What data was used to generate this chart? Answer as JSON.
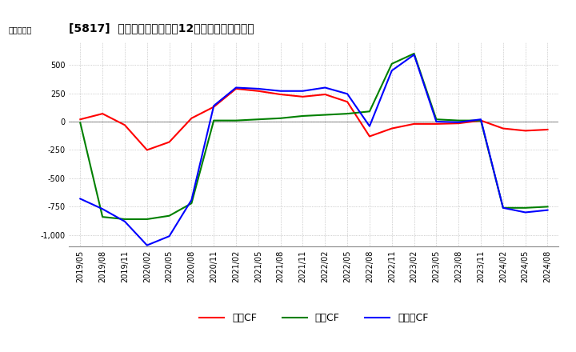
{
  "title": "[5817]  キャッシュフローの12か月移動合計の推移",
  "ylabel": "（百万円）",
  "dates": [
    "2019/05",
    "2019/08",
    "2019/11",
    "2020/02",
    "2020/05",
    "2020/08",
    "2020/11",
    "2021/02",
    "2021/05",
    "2021/08",
    "2021/11",
    "2022/02",
    "2022/05",
    "2022/08",
    "2022/11",
    "2023/02",
    "2023/05",
    "2023/08",
    "2023/11",
    "2024/02",
    "2024/05",
    "2024/08"
  ],
  "operating_cf": [
    20,
    70,
    -30,
    -250,
    -180,
    30,
    130,
    290,
    270,
    240,
    220,
    240,
    175,
    -130,
    -60,
    -20,
    -20,
    -15,
    10,
    -60,
    -80,
    -70
  ],
  "investing_cf": [
    -10,
    -840,
    -860,
    -860,
    -830,
    -720,
    10,
    10,
    20,
    30,
    50,
    60,
    70,
    90,
    510,
    600,
    20,
    10,
    10,
    -760,
    -760,
    -750
  ],
  "free_cf": [
    -680,
    -770,
    -880,
    -1090,
    -1010,
    -690,
    140,
    300,
    290,
    270,
    270,
    300,
    245,
    -40,
    450,
    590,
    0,
    -5,
    20,
    -760,
    -800,
    -780
  ],
  "operating_color": "#ff0000",
  "investing_color": "#008000",
  "free_color": "#0000ff",
  "ylim": [
    -1100,
    700
  ],
  "yticks": [
    -1000,
    -750,
    -500,
    -250,
    0,
    250,
    500
  ],
  "background_color": "#ffffff",
  "grid_color": "#aaaaaa"
}
